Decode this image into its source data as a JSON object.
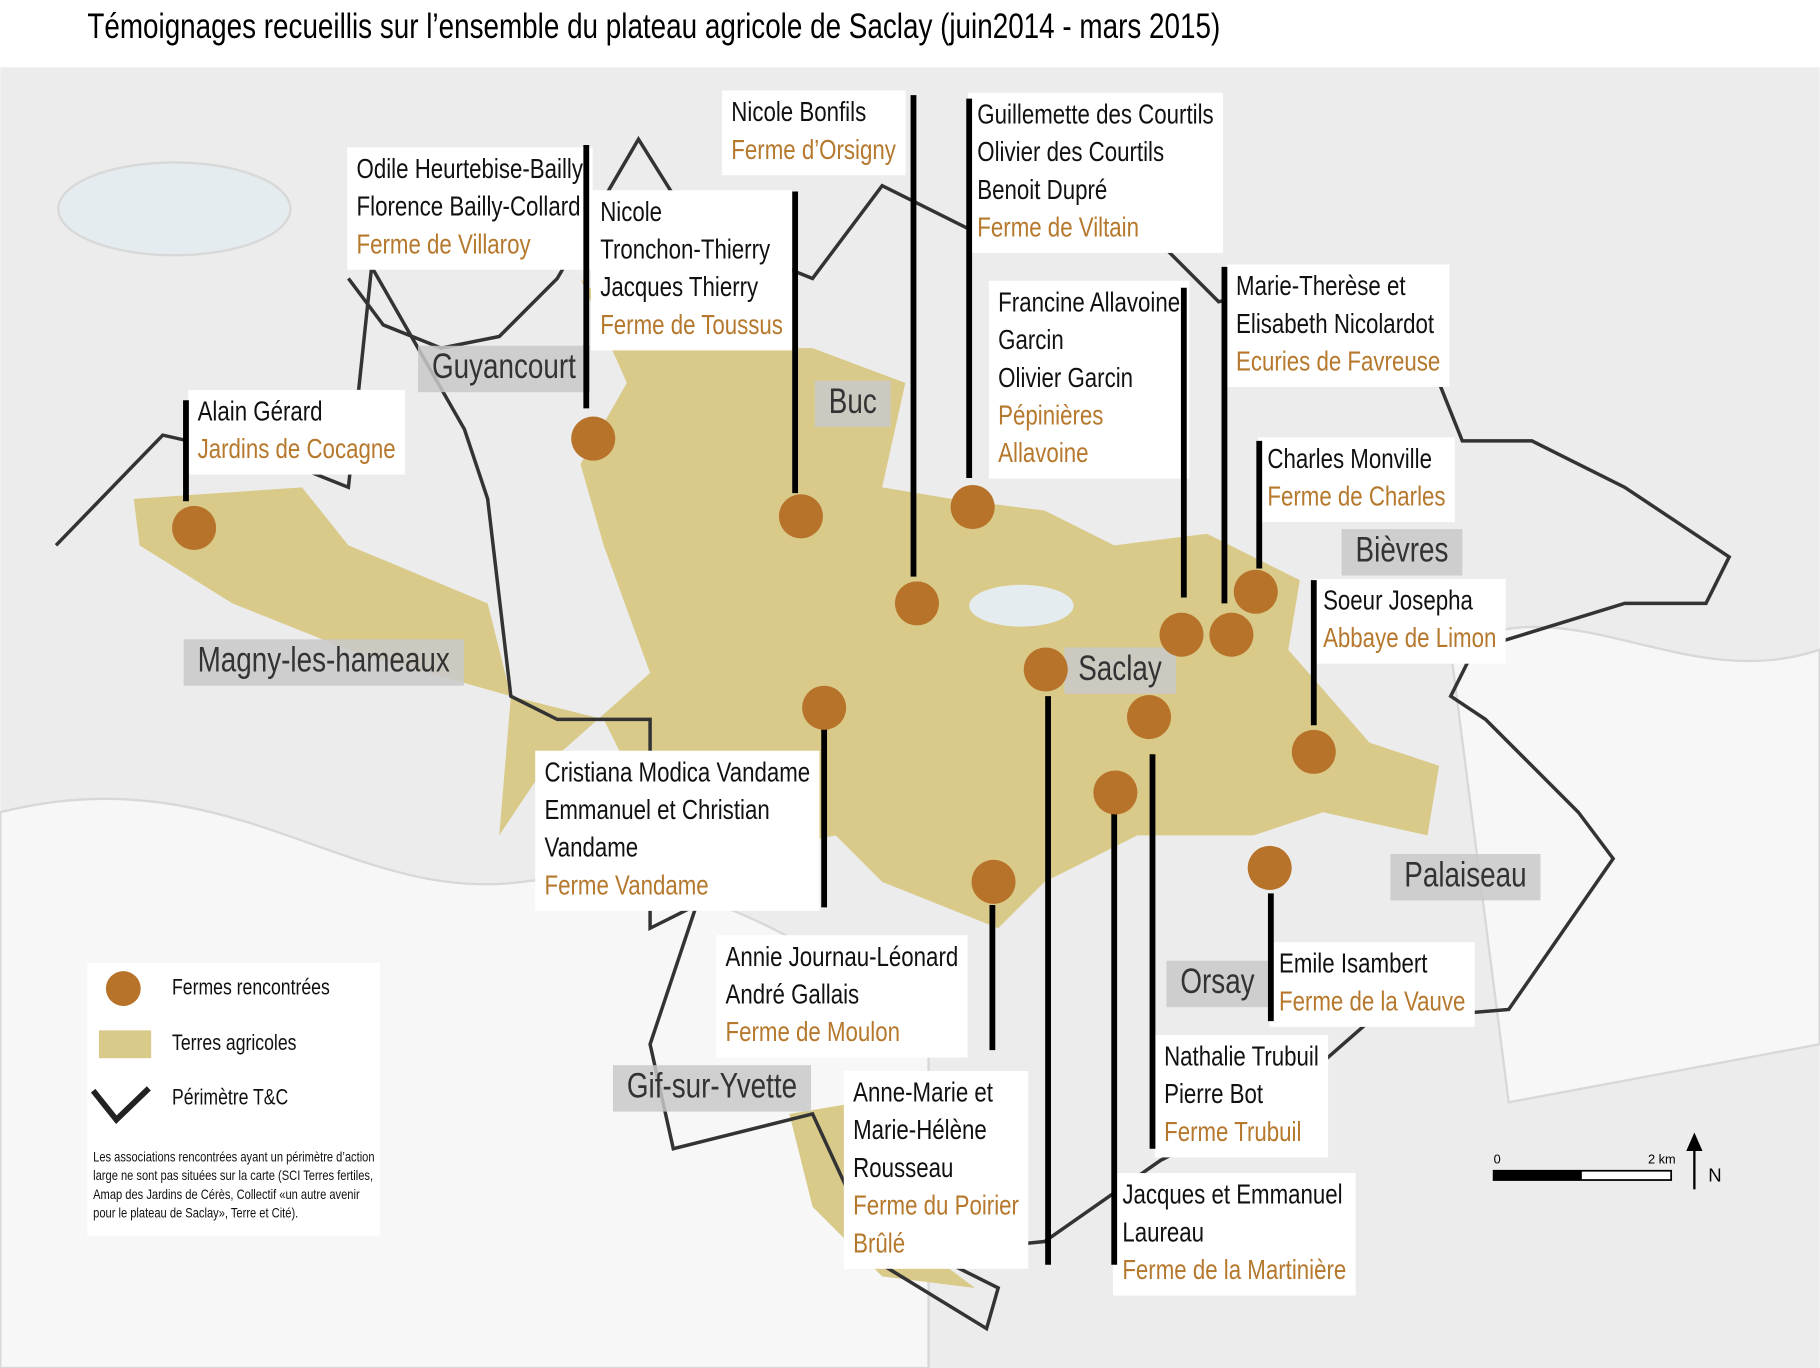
{
  "title": "Témoignages recueillis sur l’ensemble du plateau agricole de Saclay (juin2014 - mars 2015)",
  "towns": [
    "Guyancourt",
    "Buc",
    "Magny-les-hameaux",
    "Saclay",
    "Bièvres",
    "Palaiseau",
    "Orsay",
    "Gif-sur-Yvette"
  ],
  "farms": [
    {
      "people": [
        "Alain Gérard"
      ],
      "farm": [
        "Jardins de Cocagne"
      ]
    },
    {
      "people": [
        "Odile Heurtebise-Bailly",
        "Florence Bailly-Collard"
      ],
      "farm": [
        "Ferme de Villaroy"
      ]
    },
    {
      "people": [
        "Nicole",
        "Tronchon-Thierry",
        "Jacques Thierry"
      ],
      "farm": [
        "Ferme de Toussus"
      ]
    },
    {
      "people": [
        "Nicole Bonfils"
      ],
      "farm": [
        "Ferme d’Orsigny"
      ]
    },
    {
      "people": [
        "Guillemette des Courtils",
        "Olivier des Courtils",
        "Benoit Dupré"
      ],
      "farm": [
        "Ferme de Viltain"
      ]
    },
    {
      "people": [
        "Francine Allavoine",
        "Garcin",
        "Olivier Garcin"
      ],
      "farm": [
        "Pépinières",
        "Allavoine"
      ]
    },
    {
      "people": [
        "Marie-Therèse et",
        "Elisabeth Nicolardot"
      ],
      "farm": [
        "Ecuries de Favreuse"
      ]
    },
    {
      "people": [
        "Charles Monville"
      ],
      "farm": [
        "Ferme de Charles"
      ]
    },
    {
      "people": [
        "Soeur Josepha"
      ],
      "farm": [
        "Abbaye de Limon"
      ]
    },
    {
      "people": [
        "Cristiana Modica Vandame",
        "Emmanuel et Christian",
        "Vandame"
      ],
      "farm": [
        "Ferme Vandame"
      ]
    },
    {
      "people": [
        "Annie Journau-Léonard",
        "André Gallais"
      ],
      "farm": [
        "Ferme de Moulon"
      ]
    },
    {
      "people": [
        "Anne-Marie et",
        "Marie-Hélène",
        "Rousseau"
      ],
      "farm": [
        "Ferme du Poirier",
        "Brûlé"
      ]
    },
    {
      "people": [
        "Jacques et Emmanuel",
        "Laureau"
      ],
      "farm": [
        "Ferme de la Martinière"
      ]
    },
    {
      "people": [
        "Nathalie Trubuil",
        "Pierre Bot"
      ],
      "farm": [
        "Ferme Trubuil"
      ]
    },
    {
      "people": [
        "Emile Isambert"
      ],
      "farm": [
        "Ferme de la Vauve"
      ]
    }
  ],
  "legend": {
    "items": [
      "Fermes rencontrées",
      "Terres agricoles",
      "Périmètre T&C"
    ],
    "note": [
      "Les associations rencontrées ayant un périmètre d’action",
      "large ne sont pas situées sur la carte (SCI Terres fertiles,",
      "Amap des Jardins de Cérès, Collectif «un autre avenir",
      "pour le plateau de Saclay», Terre et Cité)."
    ]
  },
  "scale": [
    "0",
    "2 km"
  ],
  "north": "N"
}
